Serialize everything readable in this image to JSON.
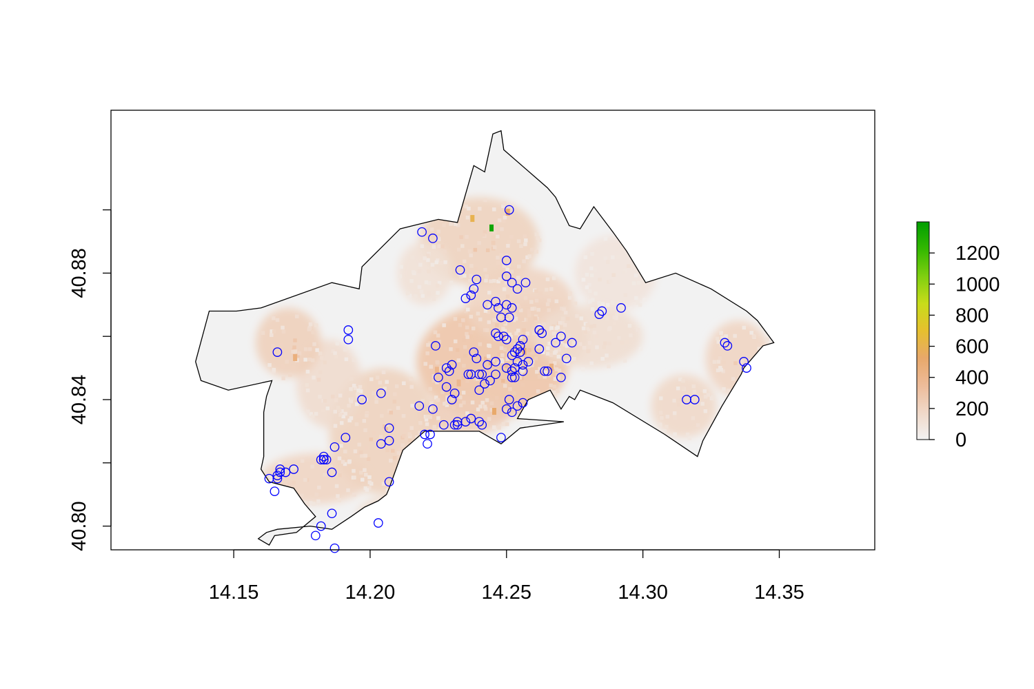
{
  "chart_data": {
    "type": "heatmap",
    "title": "",
    "xlabel": "",
    "ylabel": "",
    "xlim": [
      14.105,
      14.385
    ],
    "ylim": [
      40.7925,
      40.9315
    ],
    "x_ticks": [
      "14.15",
      "14.20",
      "14.25",
      "14.30",
      "14.35"
    ],
    "y_ticks": [
      "40.80",
      "40.84",
      "40.88"
    ],
    "legend": {
      "position": "right",
      "ticks": [
        "0",
        "200",
        "400",
        "600",
        "800",
        "1000",
        "1200"
      ],
      "range": [
        0,
        1400
      ],
      "colors": [
        "#f2f2f2",
        "#f0d8c8",
        "#edbb99",
        "#e8a86a",
        "#e6c02e",
        "#c8dc1a",
        "#7fcf10",
        "#33b800",
        "#009e00"
      ]
    },
    "boundary": [
      [
        14.136,
        40.852
      ],
      [
        14.141,
        40.868
      ],
      [
        14.151,
        40.868
      ],
      [
        14.16,
        40.869
      ],
      [
        14.186,
        40.877
      ],
      [
        14.196,
        40.875
      ],
      [
        14.197,
        40.882
      ],
      [
        14.211,
        40.894
      ],
      [
        14.225,
        40.897
      ],
      [
        14.232,
        40.896
      ],
      [
        14.238,
        40.914
      ],
      [
        14.242,
        40.912
      ],
      [
        14.245,
        40.924
      ],
      [
        14.248,
        40.925
      ],
      [
        14.249,
        40.919
      ],
      [
        14.265,
        40.907
      ],
      [
        14.268,
        40.904
      ],
      [
        14.273,
        40.895
      ],
      [
        14.277,
        40.894
      ],
      [
        14.282,
        40.901
      ],
      [
        14.289,
        40.893
      ],
      [
        14.294,
        40.887
      ],
      [
        14.301,
        40.877
      ],
      [
        14.312,
        40.88
      ],
      [
        14.325,
        40.875
      ],
      [
        14.338,
        40.868
      ],
      [
        14.342,
        40.865
      ],
      [
        14.348,
        40.858
      ],
      [
        14.344,
        40.857
      ],
      [
        14.337,
        40.85
      ],
      [
        14.336,
        40.848
      ],
      [
        14.329,
        40.838
      ],
      [
        14.322,
        40.827
      ],
      [
        14.32,
        40.822
      ],
      [
        14.308,
        40.829
      ],
      [
        14.289,
        40.839
      ],
      [
        14.277,
        40.843
      ],
      [
        14.275,
        40.84
      ],
      [
        14.273,
        40.841
      ],
      [
        14.27,
        40.837
      ],
      [
        14.266,
        40.843
      ],
      [
        14.258,
        40.84
      ],
      [
        14.254,
        40.834
      ],
      [
        14.271,
        40.833
      ],
      [
        14.255,
        40.831
      ],
      [
        14.248,
        40.826
      ],
      [
        14.24,
        40.83
      ],
      [
        14.22,
        40.83
      ],
      [
        14.212,
        40.824
      ],
      [
        14.207,
        40.812
      ],
      [
        14.206,
        40.81
      ],
      [
        14.203,
        40.808
      ],
      [
        14.198,
        40.806
      ],
      [
        14.193,
        40.803
      ],
      [
        14.186,
        40.799
      ],
      [
        14.178,
        40.8
      ],
      [
        14.166,
        40.799
      ],
      [
        14.162,
        40.798
      ],
      [
        14.159,
        40.796
      ],
      [
        14.163,
        40.794
      ],
      [
        14.165,
        40.797
      ],
      [
        14.173,
        40.798
      ],
      [
        14.18,
        40.803
      ],
      [
        14.176,
        40.807
      ],
      [
        14.172,
        40.812
      ],
      [
        14.163,
        40.814
      ],
      [
        14.16,
        40.818
      ],
      [
        14.161,
        40.822
      ],
      [
        14.161,
        40.836
      ],
      [
        14.162,
        40.841
      ],
      [
        14.164,
        40.846
      ],
      [
        14.148,
        40.843
      ],
      [
        14.138,
        40.846
      ]
    ],
    "hotspots": [
      {
        "x": 14.245,
        "y": 40.852,
        "rx": 0.028,
        "ry": 0.018,
        "value": 300
      },
      {
        "x": 14.26,
        "y": 40.86,
        "rx": 0.02,
        "ry": 0.012,
        "value": 260
      },
      {
        "x": 14.24,
        "y": 40.89,
        "rx": 0.022,
        "ry": 0.014,
        "value": 220
      },
      {
        "x": 14.255,
        "y": 40.87,
        "rx": 0.02,
        "ry": 0.012,
        "value": 200
      },
      {
        "x": 14.205,
        "y": 40.83,
        "rx": 0.02,
        "ry": 0.02,
        "value": 220
      },
      {
        "x": 14.185,
        "y": 40.845,
        "rx": 0.012,
        "ry": 0.014,
        "value": 160
      },
      {
        "x": 14.17,
        "y": 40.858,
        "rx": 0.012,
        "ry": 0.011,
        "value": 230
      },
      {
        "x": 14.18,
        "y": 40.815,
        "rx": 0.02,
        "ry": 0.008,
        "value": 200
      },
      {
        "x": 14.22,
        "y": 40.88,
        "rx": 0.01,
        "ry": 0.01,
        "value": 120
      },
      {
        "x": 14.28,
        "y": 40.86,
        "rx": 0.02,
        "ry": 0.01,
        "value": 140
      },
      {
        "x": 14.29,
        "y": 40.88,
        "rx": 0.015,
        "ry": 0.012,
        "value": 100
      },
      {
        "x": 14.335,
        "y": 40.853,
        "rx": 0.012,
        "ry": 0.012,
        "value": 200
      },
      {
        "x": 14.315,
        "y": 40.838,
        "rx": 0.012,
        "ry": 0.01,
        "value": 180
      },
      {
        "x": 14.235,
        "y": 40.835,
        "rx": 0.016,
        "ry": 0.006,
        "value": 240
      },
      {
        "x": 14.205,
        "y": 40.803,
        "rx": 0.01,
        "ry": 0.006,
        "value": 150
      }
    ],
    "peaks": [
      {
        "x": 14.2375,
        "y": 40.8975,
        "value": 600
      },
      {
        "x": 14.2445,
        "y": 40.8945,
        "value": 1350
      },
      {
        "x": 14.2505,
        "y": 40.8995,
        "value": 500
      },
      {
        "x": 14.2455,
        "y": 40.8365,
        "value": 520
      },
      {
        "x": 14.2565,
        "y": 40.8555,
        "value": 480
      },
      {
        "x": 14.1725,
        "y": 40.8535,
        "value": 450
      },
      {
        "x": 14.2665,
        "y": 40.8505,
        "value": 420
      },
      {
        "x": 14.2245,
        "y": 40.8495,
        "value": 400
      },
      {
        "x": 14.2325,
        "y": 40.8455,
        "value": 380
      }
    ],
    "points": [
      [
        14.251,
        40.9
      ],
      [
        14.219,
        40.893
      ],
      [
        14.223,
        40.891
      ],
      [
        14.25,
        40.884
      ],
      [
        14.25,
        40.879
      ],
      [
        14.252,
        40.877
      ],
      [
        14.257,
        40.877
      ],
      [
        14.233,
        40.881
      ],
      [
        14.239,
        40.878
      ],
      [
        14.238,
        40.875
      ],
      [
        14.254,
        40.875
      ],
      [
        14.237,
        40.873
      ],
      [
        14.235,
        40.872
      ],
      [
        14.243,
        40.87
      ],
      [
        14.246,
        40.871
      ],
      [
        14.25,
        40.87
      ],
      [
        14.252,
        40.869
      ],
      [
        14.251,
        40.866
      ],
      [
        14.248,
        40.866
      ],
      [
        14.247,
        40.869
      ],
      [
        14.292,
        40.869
      ],
      [
        14.285,
        40.868
      ],
      [
        14.284,
        40.867
      ],
      [
        14.192,
        40.862
      ],
      [
        14.192,
        40.859
      ],
      [
        14.166,
        40.855
      ],
      [
        14.246,
        40.861
      ],
      [
        14.247,
        40.86
      ],
      [
        14.249,
        40.86
      ],
      [
        14.25,
        40.859
      ],
      [
        14.262,
        40.862
      ],
      [
        14.263,
        40.861
      ],
      [
        14.262,
        40.862
      ],
      [
        14.27,
        40.86
      ],
      [
        14.274,
        40.858
      ],
      [
        14.268,
        40.858
      ],
      [
        14.256,
        40.859
      ],
      [
        14.255,
        40.857
      ],
      [
        14.254,
        40.856
      ],
      [
        14.253,
        40.855
      ],
      [
        14.262,
        40.856
      ],
      [
        14.255,
        40.855
      ],
      [
        14.33,
        40.858
      ],
      [
        14.331,
        40.857
      ],
      [
        14.337,
        40.852
      ],
      [
        14.338,
        40.85
      ],
      [
        14.224,
        40.857
      ],
      [
        14.238,
        40.855
      ],
      [
        14.239,
        40.853
      ],
      [
        14.246,
        40.852
      ],
      [
        14.243,
        40.851
      ],
      [
        14.252,
        40.854
      ],
      [
        14.254,
        40.852
      ],
      [
        14.256,
        40.851
      ],
      [
        14.258,
        40.852
      ],
      [
        14.272,
        40.853
      ],
      [
        14.228,
        40.85
      ],
      [
        14.23,
        40.851
      ],
      [
        14.229,
        40.849
      ],
      [
        14.236,
        40.848
      ],
      [
        14.237,
        40.848
      ],
      [
        14.24,
        40.848
      ],
      [
        14.241,
        40.848
      ],
      [
        14.25,
        40.85
      ],
      [
        14.252,
        40.849
      ],
      [
        14.253,
        40.85
      ],
      [
        14.256,
        40.849
      ],
      [
        14.264,
        40.849
      ],
      [
        14.265,
        40.849
      ],
      [
        14.27,
        40.847
      ],
      [
        14.225,
        40.847
      ],
      [
        14.246,
        40.848
      ],
      [
        14.244,
        40.846
      ],
      [
        14.242,
        40.845
      ],
      [
        14.24,
        40.843
      ],
      [
        14.252,
        40.847
      ],
      [
        14.253,
        40.847
      ],
      [
        14.228,
        40.844
      ],
      [
        14.231,
        40.842
      ],
      [
        14.23,
        40.84
      ],
      [
        14.197,
        40.84
      ],
      [
        14.204,
        40.842
      ],
      [
        14.251,
        40.84
      ],
      [
        14.256,
        40.839
      ],
      [
        14.254,
        40.838
      ],
      [
        14.25,
        40.837
      ],
      [
        14.252,
        40.836
      ],
      [
        14.223,
        40.837
      ],
      [
        14.218,
        40.838
      ],
      [
        14.227,
        40.832
      ],
      [
        14.231,
        40.832
      ],
      [
        14.232,
        40.833
      ],
      [
        14.235,
        40.833
      ],
      [
        14.237,
        40.834
      ],
      [
        14.24,
        40.833
      ],
      [
        14.241,
        40.832
      ],
      [
        14.232,
        40.832
      ],
      [
        14.316,
        40.84
      ],
      [
        14.319,
        40.84
      ],
      [
        14.191,
        40.828
      ],
      [
        14.207,
        40.831
      ],
      [
        14.207,
        40.827
      ],
      [
        14.204,
        40.826
      ],
      [
        14.22,
        40.829
      ],
      [
        14.222,
        40.829
      ],
      [
        14.221,
        40.826
      ],
      [
        14.248,
        40.828
      ],
      [
        14.183,
        40.821
      ],
      [
        14.183,
        40.822
      ],
      [
        14.183,
        40.821
      ],
      [
        14.184,
        40.821
      ],
      [
        14.182,
        40.821
      ],
      [
        14.187,
        40.825
      ],
      [
        14.167,
        40.818
      ],
      [
        14.169,
        40.817
      ],
      [
        14.172,
        40.818
      ],
      [
        14.166,
        40.816
      ],
      [
        14.167,
        40.817
      ],
      [
        14.186,
        40.817
      ],
      [
        14.163,
        40.815
      ],
      [
        14.166,
        40.815
      ],
      [
        14.207,
        40.814
      ],
      [
        14.165,
        40.811
      ],
      [
        14.186,
        40.804
      ],
      [
        14.203,
        40.801
      ],
      [
        14.182,
        40.8
      ],
      [
        14.18,
        40.797
      ],
      [
        14.187,
        40.793
      ]
    ]
  }
}
